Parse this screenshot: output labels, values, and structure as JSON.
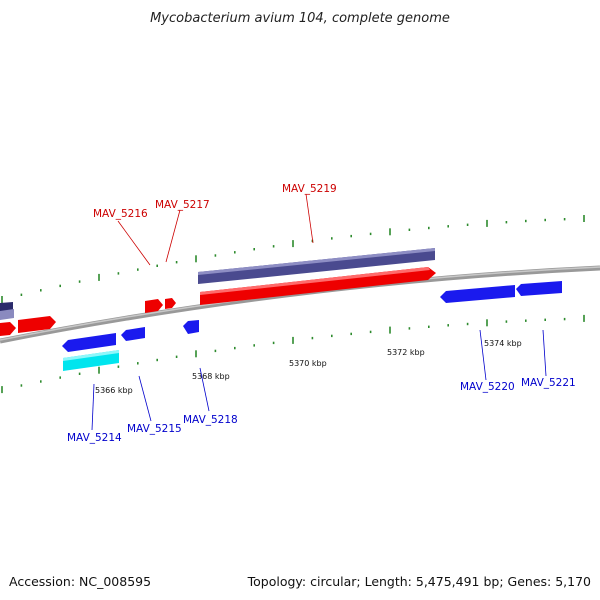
{
  "title": "Mycobacterium avium 104, complete genome",
  "footer": {
    "accession": "Accession: NC_008595",
    "summary": "Topology: circular; Length: 5,475,491 bp; Genes: 5,170"
  },
  "colors": {
    "forward_gene": "#ff0000",
    "reverse_gene": "#0000ff",
    "forward_cds": "#4a4a8f",
    "reverse_cds": "#00e5ee",
    "backbone": "#888888",
    "tick": "#2e8b2e",
    "forward_label": "#cc0000",
    "reverse_label": "#0000cc"
  },
  "ticks": [
    {
      "label": "5366 kbp"
    },
    {
      "label": "5368 kbp"
    },
    {
      "label": "5370 kbp"
    },
    {
      "label": "5372 kbp"
    },
    {
      "label": "5374 kbp"
    }
  ],
  "genes": [
    {
      "name": "MAV_5214",
      "strand": "reverse"
    },
    {
      "name": "MAV_5215",
      "strand": "reverse"
    },
    {
      "name": "MAV_5216",
      "strand": "forward"
    },
    {
      "name": "MAV_5217",
      "strand": "forward"
    },
    {
      "name": "MAV_5218",
      "strand": "reverse"
    },
    {
      "name": "MAV_5219",
      "strand": "forward"
    },
    {
      "name": "MAV_5220",
      "strand": "reverse"
    },
    {
      "name": "MAV_5221",
      "strand": "reverse"
    }
  ]
}
